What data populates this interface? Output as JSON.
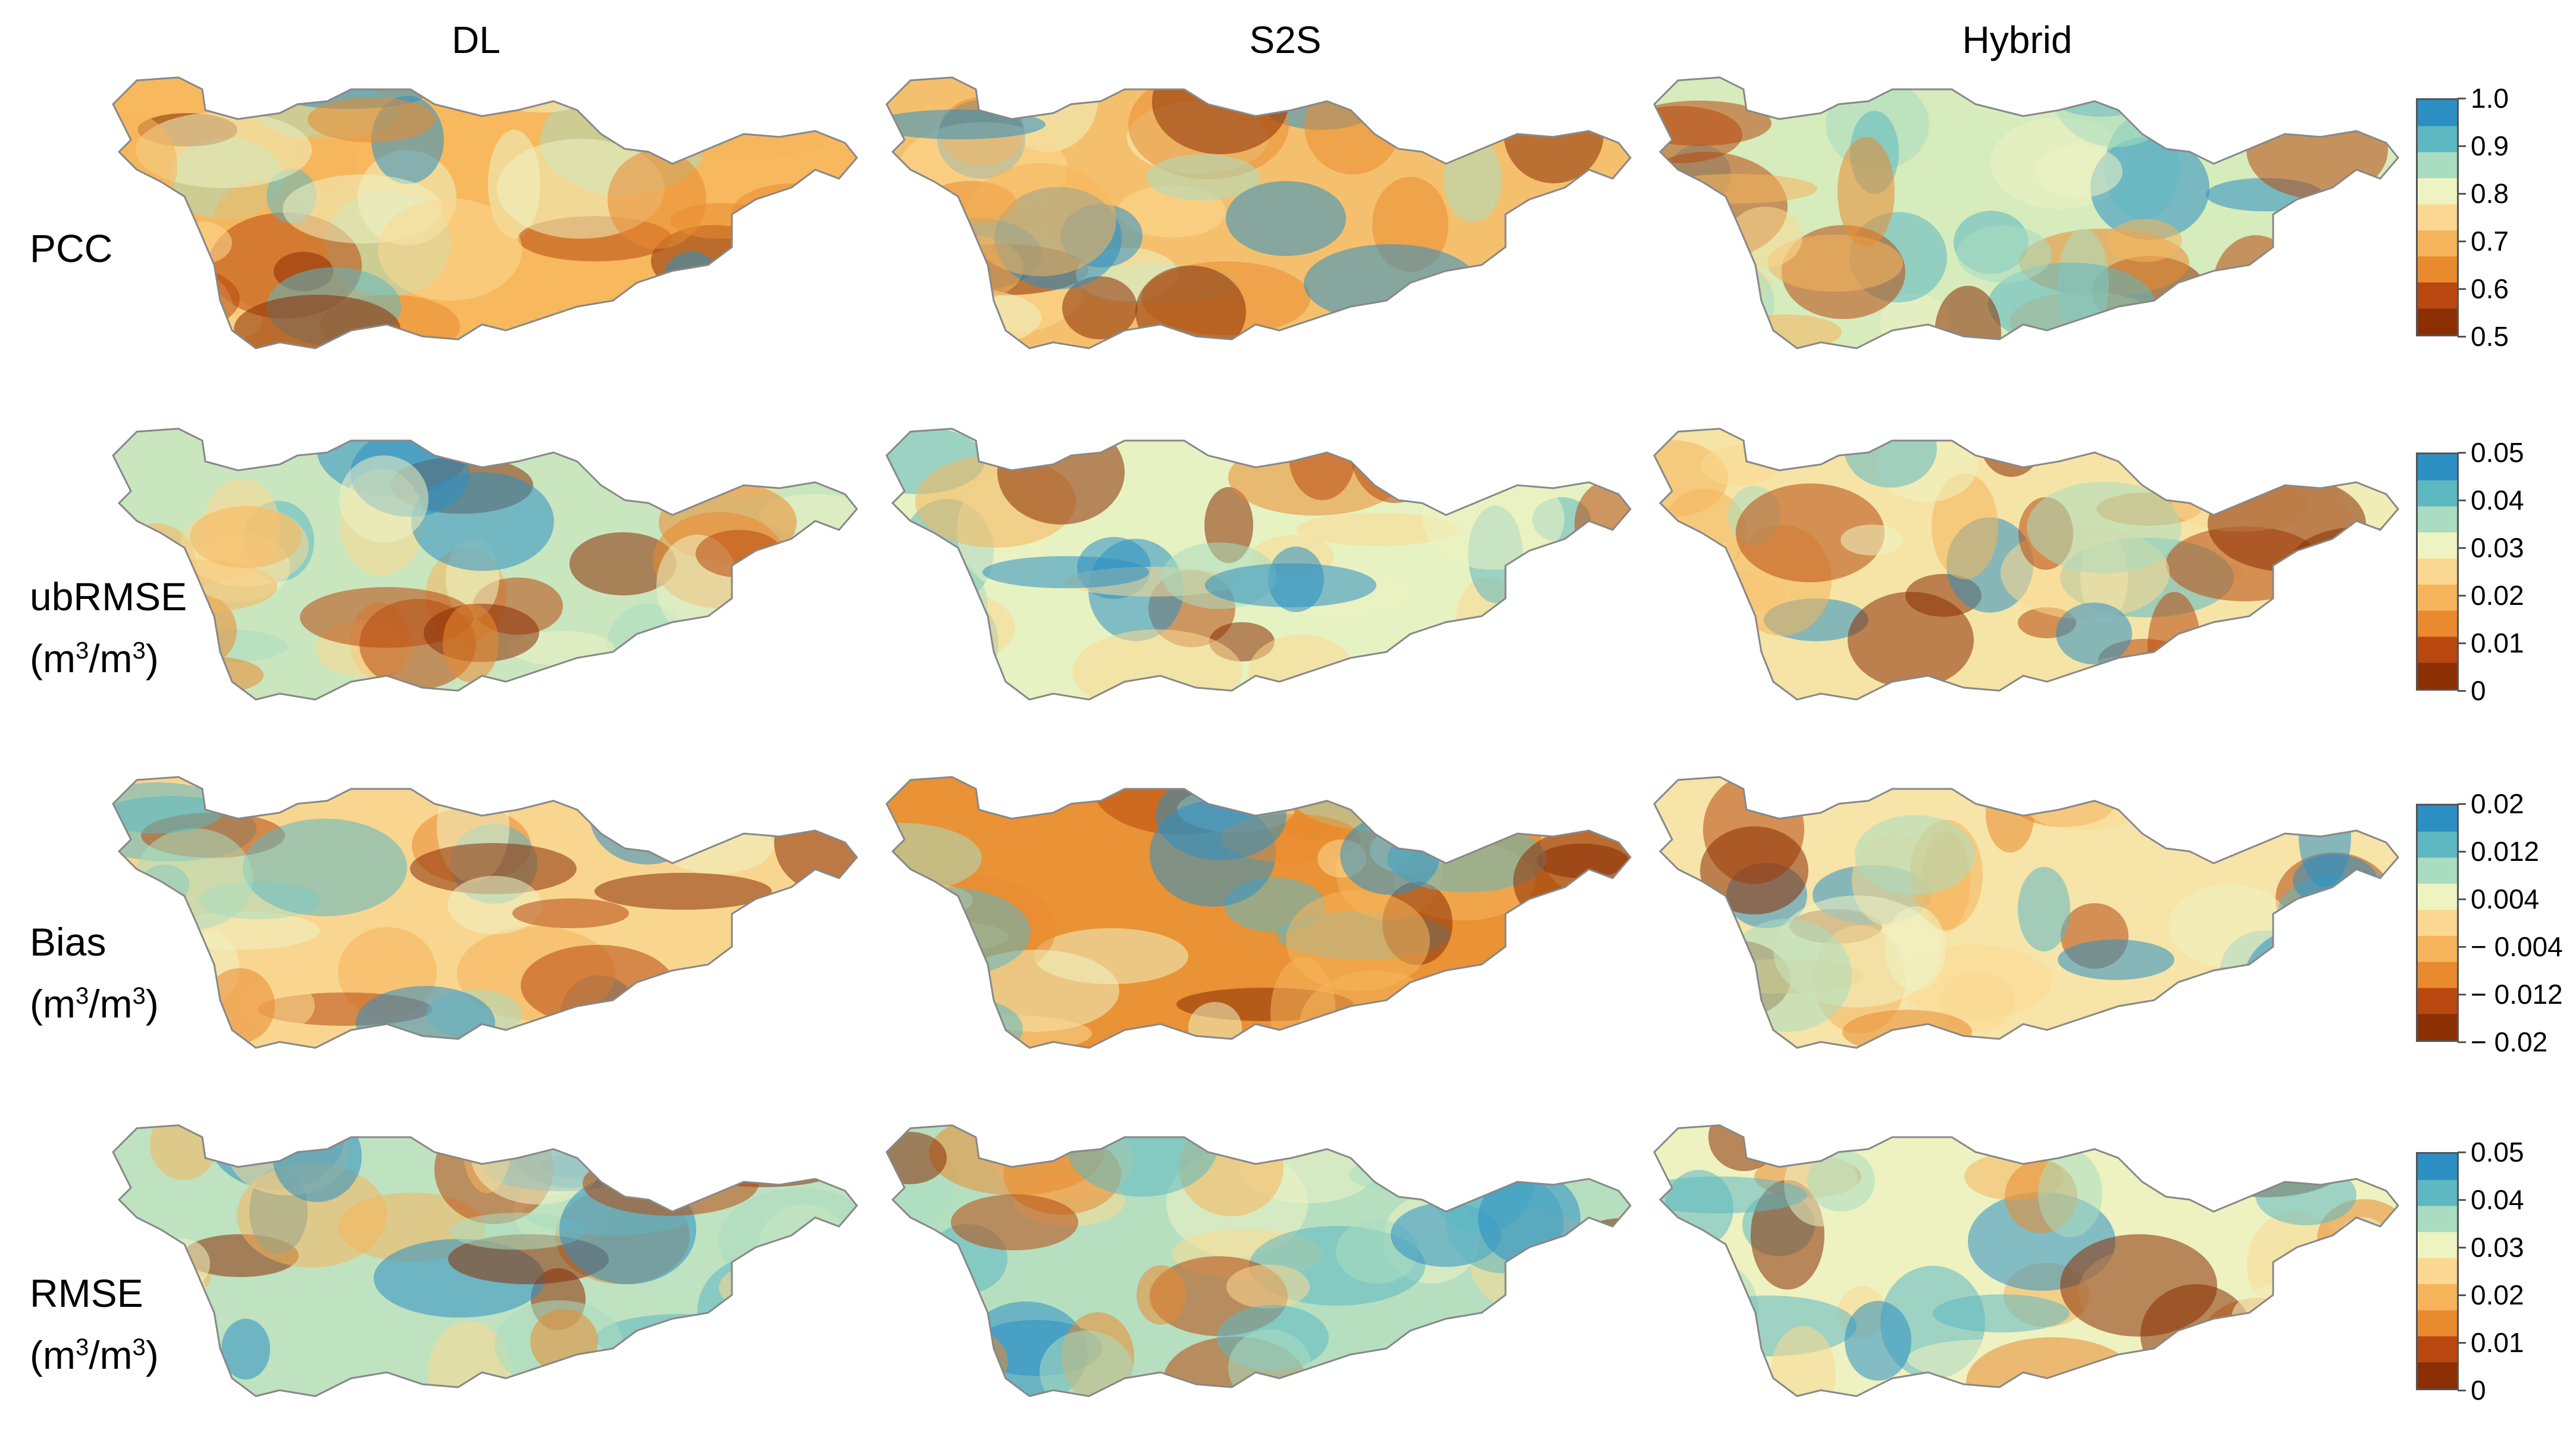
{
  "columns": [
    "DL",
    "S2S",
    "Hybrid"
  ],
  "rows": [
    {
      "label_main": "PCC",
      "unit_pre": "",
      "unit_sup1": "",
      "unit_mid": "",
      "unit_sup2": "",
      "unit_post": "",
      "ticks": [
        "1.0",
        "0.9",
        "0.8",
        "0.7",
        "0.6",
        "0.5"
      ]
    },
    {
      "label_main": "ubRMSE",
      "unit_pre": "(m",
      "unit_sup1": "3",
      "unit_mid": "/m",
      "unit_sup2": "3",
      "unit_post": ")",
      "ticks": [
        "0.05",
        "0.04",
        "0.03",
        "0.02",
        "0.01",
        "0"
      ]
    },
    {
      "label_main": "Bias",
      "unit_pre": "(m",
      "unit_sup1": "3",
      "unit_mid": "/m",
      "unit_sup2": "3",
      "unit_post": ")",
      "ticks": [
        "0.02",
        "0.012",
        "0.004",
        "− 0.004",
        "− 0.012",
        "− 0.02"
      ]
    },
    {
      "label_main": "RMSE",
      "unit_pre": "(m",
      "unit_sup1": "3",
      "unit_mid": "/m",
      "unit_sup2": "3",
      "unit_post": ")",
      "ticks": [
        "0.05",
        "0.04",
        "0.03",
        "0.02",
        "0.01",
        "0"
      ]
    }
  ],
  "colorscale": [
    "#2c8fc4",
    "#5db8c2",
    "#a9dcc0",
    "#eef3c2",
    "#fbd891",
    "#f5b45b",
    "#e98a2f",
    "#b8480f",
    "#8b2e04"
  ],
  "panel_fill": {
    "PCC": {
      "DL": "#f7b85e",
      "S2S": "#f5c06e",
      "Hybrid": "#d6ecbc"
    },
    "ubRMSE": {
      "DL": "#c9e6bf",
      "S2S": "#e6f2c2",
      "Hybrid": "#f6e4a6"
    },
    "Bias": {
      "DL": "#f8d690",
      "S2S": "#e99236",
      "Hybrid": "#f6e4a8"
    },
    "RMSE": {
      "DL": "#bfe2c0",
      "S2S": "#b6dfc0",
      "Hybrid": "#eef2c0"
    }
  }
}
